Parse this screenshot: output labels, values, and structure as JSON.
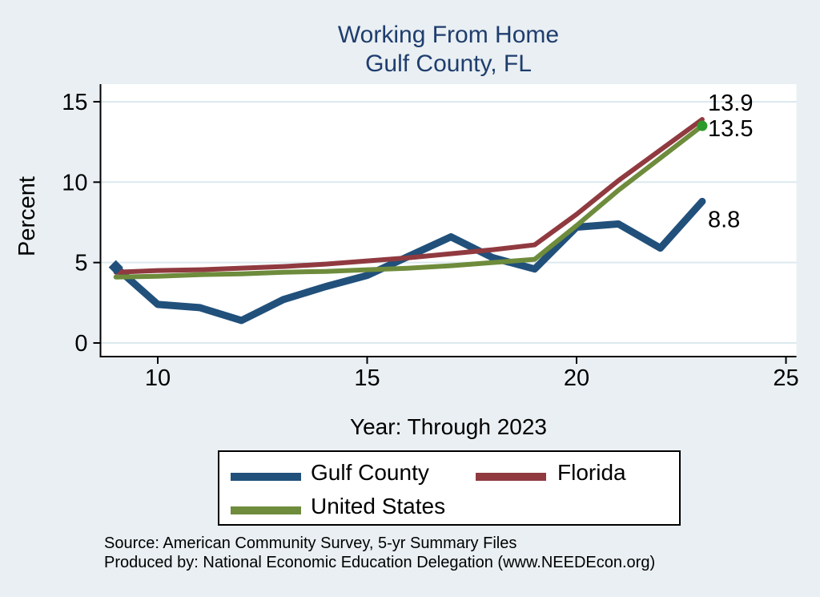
{
  "title": {
    "line1": "Working From Home",
    "line2": "Gulf County, FL"
  },
  "axes": {
    "y_label": "Percent",
    "x_caption": "Year: Through 2023"
  },
  "chart_data": {
    "type": "line",
    "title": "Working From Home Gulf County, FL",
    "xlabel": "Year: Through 2023",
    "ylabel": "Percent",
    "x": [
      9,
      10,
      11,
      12,
      13,
      14,
      15,
      16,
      17,
      18,
      19,
      20,
      21,
      22,
      23
    ],
    "x_ticks": [
      10,
      15,
      20,
      25
    ],
    "y_ticks": [
      0,
      5,
      10,
      15
    ],
    "xlim": [
      8.6,
      25.3
    ],
    "ylim": [
      -0.85,
      16.1
    ],
    "grid": true,
    "legend_position": "bottom",
    "series": [
      {
        "name": "Gulf County",
        "color": "#21507B",
        "line_width": 9,
        "values": [
          4.7,
          2.4,
          2.2,
          1.4,
          2.7,
          3.5,
          4.2,
          5.4,
          6.6,
          5.3,
          4.6,
          7.2,
          7.4,
          5.9,
          8.8
        ],
        "end_label": "8.8",
        "start_marker": "diamond-icon"
      },
      {
        "name": "Florida",
        "color": "#903A40",
        "line_width": 6,
        "values": [
          4.4,
          4.5,
          4.55,
          4.65,
          4.75,
          4.9,
          5.1,
          5.3,
          5.55,
          5.8,
          6.1,
          8.0,
          10.1,
          12.0,
          13.9
        ],
        "end_label": "13.9"
      },
      {
        "name": "United States",
        "color": "#6E8C3C",
        "line_width": 6,
        "values": [
          4.1,
          4.15,
          4.25,
          4.3,
          4.4,
          4.45,
          4.55,
          4.65,
          4.8,
          5.0,
          5.2,
          7.3,
          9.5,
          11.5,
          13.5
        ],
        "end_label": "13.5",
        "end_marker": "circle-icon",
        "end_marker_color": "#2B9A2B"
      }
    ]
  },
  "colors": {
    "background": "#E9EFF2",
    "plot_background": "#FFFFFF",
    "gridline": "#DCE9EF",
    "axis": "#000000",
    "title_text": "#1F3D6E"
  },
  "footer": {
    "line1": "Source: American Community Survey, 5-yr Summary Files",
    "line2": "Produced by: National Economic Education Delegation (www.NEEDEcon.org)"
  }
}
